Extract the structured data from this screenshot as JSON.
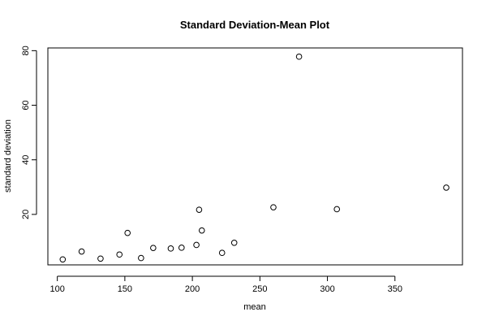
{
  "chart_data": {
    "type": "scatter",
    "title": "Standard Deviation-Mean Plot",
    "xlabel": "mean",
    "ylabel": "standard deviation",
    "xlim": [
      93,
      400
    ],
    "ylim": [
      1.5,
      81
    ],
    "xticks": [
      100,
      150,
      200,
      250,
      300,
      350
    ],
    "yticks": [
      20,
      40,
      60,
      80
    ],
    "grid": false,
    "legend": "none",
    "points": [
      {
        "x": 104,
        "y": 3.5
      },
      {
        "x": 118,
        "y": 6.4
      },
      {
        "x": 132,
        "y": 3.8
      },
      {
        "x": 146,
        "y": 5.3
      },
      {
        "x": 152,
        "y": 13.2
      },
      {
        "x": 162,
        "y": 4.0
      },
      {
        "x": 171,
        "y": 7.7
      },
      {
        "x": 184,
        "y": 7.5
      },
      {
        "x": 192,
        "y": 7.8
      },
      {
        "x": 203,
        "y": 8.8
      },
      {
        "x": 205,
        "y": 21.7
      },
      {
        "x": 207,
        "y": 14.1
      },
      {
        "x": 222,
        "y": 5.9
      },
      {
        "x": 231,
        "y": 9.6
      },
      {
        "x": 260,
        "y": 22.6
      },
      {
        "x": 279,
        "y": 77.8
      },
      {
        "x": 307,
        "y": 21.9
      },
      {
        "x": 388,
        "y": 29.8
      }
    ]
  }
}
